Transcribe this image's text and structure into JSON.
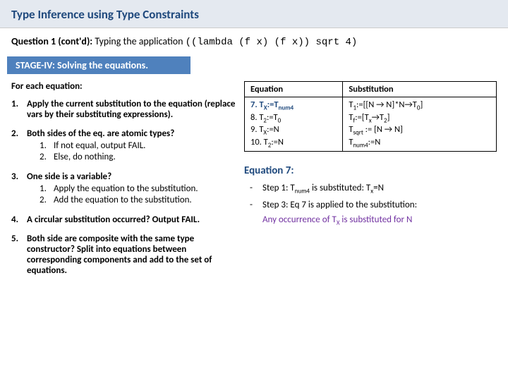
{
  "title": "Type Inference using Type Constraints",
  "question": {
    "label": "Question 1 (cont'd):",
    "text": "Typing the application",
    "code": "((lambda (f x)  (f x)) sqrt 4)"
  },
  "stage": "STAGE-IV: Solving the equations.",
  "forEach": "For each equation:",
  "steps": {
    "s1": "Apply the current substitution to the equation (replace vars by their substituting expressions).",
    "s2": "Both sides of the eq. are atomic types?",
    "s2a": "If not equal, output FAIL.",
    "s2b": "Else, do nothing.",
    "s3": "One side is a variable?",
    "s3a": "Apply the equation to the substitution.",
    "s3b": "Add the equation to the substitution.",
    "s4": "A circular substitution occurred? Output FAIL.",
    "s5": "Both side are composite with the same type constructor? Split into equations between corresponding components and add to the set of equations."
  },
  "table": {
    "h1": "Equation",
    "h2": "Substitution",
    "rows": {
      "r1e": "7. T",
      "r1e_sub1": "X",
      "r1e_mid": ":=T",
      "r1e_sub2": "num4",
      "r1s": "T",
      "r1s_sub": "1",
      "r1s_rest": ":=[[N → N]*N→T",
      "r1s_sub2": "0",
      "r1s_end": "]",
      "r2e": "8. T",
      "r2e_sub": "2",
      "r2e_rest": ":=T",
      "r2e_sub2": "0",
      "r2s": "T",
      "r2s_sub": "f",
      "r2s_rest": ":=[T",
      "r2s_sub2": "x",
      "r2s_mid": "→T",
      "r2s_sub3": "2",
      "r2s_end": "]",
      "r3e": "9. T",
      "r3e_sub": "X",
      "r3e_rest": ":=N",
      "r3s": "T",
      "r3s_sub": "sqrt",
      "r3s_rest": " := [N → N]",
      "r4e": "10. T",
      "r4e_sub": "2",
      "r4e_rest": ":=N",
      "r4s": "T",
      "r4s_sub": "num4",
      "r4s_rest": ":=N"
    }
  },
  "eqTitle": "Equation 7:",
  "step1": "Step 1: T",
  "step1_sub": "num4",
  "step1_rest": " is substituted: T",
  "step1_sub2": "x",
  "step1_end": "=N",
  "step3": "Step 3: Eq 7 is applied to the substitution:",
  "anyOcc": "Any occurrence of T",
  "anyOcc_sub": "X",
  "anyOcc_rest": " is substituted for N"
}
